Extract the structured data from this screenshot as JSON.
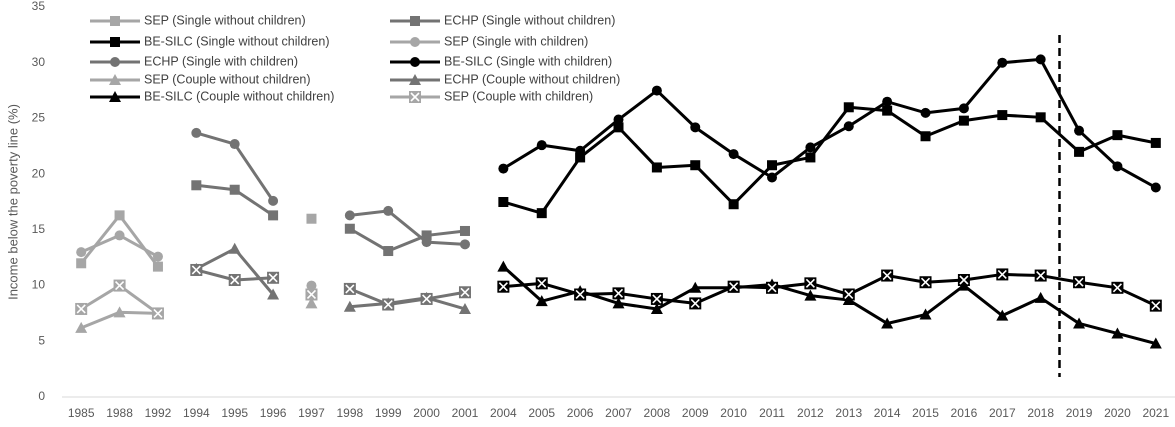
{
  "chart_data": {
    "type": "line",
    "y_label": "Income below the poverty line (%)",
    "categories": [
      "1985",
      "1988",
      "1992",
      "1994",
      "1995",
      "1996",
      "1997",
      "1998",
      "1999",
      "2000",
      "2001",
      "2004",
      "2005",
      "2006",
      "2007",
      "2008",
      "2009",
      "2010",
      "2011",
      "2012",
      "2013",
      "2014",
      "2015",
      "2016",
      "2017",
      "2018",
      "2019",
      "2020",
      "2021"
    ],
    "ylim": [
      0,
      35
    ],
    "yticks": [
      0,
      5,
      10,
      15,
      20,
      25,
      30,
      35
    ],
    "grid": false,
    "series": [
      {
        "name": "SEP (Single without children)",
        "color": "#a6a6a6",
        "marker": "square",
        "values": [
          12,
          16.3,
          11.7,
          null,
          null,
          null,
          16,
          null,
          null,
          null,
          null,
          null,
          null,
          null,
          null,
          null,
          null,
          null,
          null,
          null,
          null,
          null,
          null,
          null,
          null,
          null,
          null,
          null,
          null
        ]
      },
      {
        "name": "ECHP (Single without children)",
        "color": "#737373",
        "marker": "square",
        "values": [
          null,
          null,
          null,
          19,
          18.6,
          16.3,
          null,
          15.1,
          13.1,
          14.5,
          14.9,
          null,
          null,
          null,
          null,
          null,
          null,
          null,
          null,
          null,
          null,
          null,
          null,
          null,
          null,
          null,
          null,
          null,
          null
        ]
      },
      {
        "name": "BE-SILC (Single without children)",
        "color": "#000000",
        "marker": "square",
        "values": [
          null,
          null,
          null,
          null,
          null,
          null,
          null,
          null,
          null,
          null,
          null,
          17.5,
          16.5,
          21.5,
          24.2,
          20.6,
          20.8,
          17.3,
          20.8,
          21.5,
          26,
          25.7,
          23.4,
          24.8,
          25.3,
          25.1,
          22,
          23.5,
          22.8
        ]
      },
      {
        "name": "SEP (Single with children)",
        "color": "#a6a6a6",
        "marker": "circle",
        "values": [
          13,
          14.5,
          12.6,
          null,
          null,
          null,
          10,
          null,
          null,
          null,
          null,
          null,
          null,
          null,
          null,
          null,
          null,
          null,
          null,
          null,
          null,
          null,
          null,
          null,
          null,
          null,
          null,
          null,
          null
        ]
      },
      {
        "name": "ECHP (Single with children)",
        "color": "#737373",
        "marker": "circle",
        "values": [
          null,
          null,
          null,
          23.7,
          22.7,
          17.6,
          null,
          16.3,
          16.7,
          13.9,
          13.7,
          null,
          null,
          null,
          null,
          null,
          null,
          null,
          null,
          null,
          null,
          null,
          null,
          null,
          null,
          null,
          null,
          null,
          null
        ]
      },
      {
        "name": "BE-SILC (Single with children)",
        "color": "#000000",
        "marker": "circle",
        "values": [
          null,
          null,
          null,
          null,
          null,
          null,
          null,
          null,
          null,
          null,
          null,
          20.5,
          22.6,
          22.1,
          24.9,
          27.5,
          24.2,
          21.8,
          19.7,
          22.4,
          24.3,
          26.5,
          25.5,
          25.9,
          30,
          30.3,
          23.9,
          20.7,
          18.8
        ]
      },
      {
        "name": "SEP (Couple without children)",
        "color": "#a6a6a6",
        "marker": "triangle",
        "values": [
          6.2,
          7.6,
          7.5,
          null,
          null,
          null,
          8.4,
          null,
          null,
          null,
          null,
          null,
          null,
          null,
          null,
          null,
          null,
          null,
          null,
          null,
          null,
          null,
          null,
          null,
          null,
          null,
          null,
          null,
          null
        ]
      },
      {
        "name": "ECHP (Couple without children)",
        "color": "#737373",
        "marker": "triangle",
        "values": [
          null,
          null,
          null,
          11.5,
          13.3,
          9.2,
          null,
          8.1,
          8.4,
          8.9,
          7.9,
          null,
          null,
          null,
          null,
          null,
          null,
          null,
          null,
          null,
          null,
          null,
          null,
          null,
          null,
          null,
          null,
          null,
          null
        ]
      },
      {
        "name": "BE-SILC (Couple without children)",
        "color": "#000000",
        "marker": "triangle",
        "values": [
          null,
          null,
          null,
          null,
          null,
          null,
          null,
          null,
          null,
          null,
          null,
          11.7,
          8.6,
          9.5,
          8.4,
          7.9,
          9.8,
          9.8,
          10.1,
          9.1,
          8.7,
          6.6,
          7.4,
          10,
          7.3,
          8.9,
          6.6,
          5.7,
          4.8
        ]
      },
      {
        "name": "SEP (Couple with children)",
        "color": "#a6a6a6",
        "marker": "xsquare",
        "values": [
          7.9,
          10,
          7.5,
          null,
          null,
          null,
          9.2,
          null,
          null,
          null,
          null,
          null,
          null,
          null,
          null,
          null,
          null,
          null,
          null,
          null,
          null,
          null,
          null,
          null,
          null,
          null,
          null,
          null,
          null
        ]
      },
      {
        "color": "#737373",
        "marker": "xsquare",
        "values": [
          null,
          null,
          null,
          11.4,
          10.5,
          10.7,
          null,
          9.7,
          8.3,
          8.8,
          9.4,
          null,
          null,
          null,
          null,
          null,
          null,
          null,
          null,
          null,
          null,
          null,
          null,
          null,
          null,
          null,
          null,
          null,
          null
        ]
      },
      {
        "color": "#000000",
        "marker": "xsquare",
        "values": [
          null,
          null,
          null,
          null,
          null,
          null,
          null,
          null,
          null,
          null,
          null,
          9.9,
          10.2,
          9.2,
          9.3,
          8.8,
          8.4,
          9.9,
          9.8,
          10.2,
          9.2,
          10.9,
          10.3,
          10.5,
          11,
          10.9,
          10.3,
          9.8,
          8.2
        ]
      }
    ]
  }
}
